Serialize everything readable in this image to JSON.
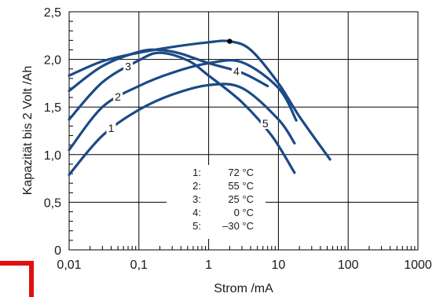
{
  "chart_data": {
    "type": "line",
    "title": "",
    "xlabel": "Strom /mA",
    "ylabel": "Kapazität bis 2 Volt /Ah",
    "x_scale": "log",
    "xlim": [
      0.01,
      1000
    ],
    "ylim": [
      0,
      2.5
    ],
    "x_ticks": [
      0.01,
      0.1,
      1,
      10,
      100,
      1000
    ],
    "x_tick_labels": [
      "0,01",
      "0,1",
      "1",
      "10",
      "100",
      "1000"
    ],
    "y_ticks": [
      0,
      0.5,
      1.0,
      1.5,
      2.0,
      2.5
    ],
    "y_tick_labels": [
      "0",
      "0,5",
      "1,0",
      "1,5",
      "2,0",
      "2,5"
    ],
    "grid": true,
    "line_color": "#1b4a86",
    "series": [
      {
        "label": "1",
        "x": [
          0.01,
          0.03,
          0.1,
          0.3,
          1,
          3,
          10,
          17
        ],
        "y": [
          0.79,
          1.2,
          1.47,
          1.63,
          1.73,
          1.7,
          1.37,
          1.12
        ]
      },
      {
        "label": "2",
        "x": [
          0.01,
          0.03,
          0.1,
          0.3,
          1,
          3,
          10,
          18
        ],
        "y": [
          1.05,
          1.5,
          1.72,
          1.86,
          1.96,
          1.97,
          1.7,
          1.36
        ]
      },
      {
        "label": "3",
        "x": [
          0.01,
          0.03,
          0.1,
          0.2,
          0.5,
          1,
          3,
          8,
          17
        ],
        "y": [
          1.37,
          1.76,
          1.99,
          2.07,
          1.99,
          1.83,
          1.55,
          1.2,
          0.81
        ]
      },
      {
        "label": "4",
        "x": [
          0.01,
          0.03,
          0.1,
          0.3,
          1,
          2,
          4,
          10,
          20,
          55
        ],
        "y": [
          1.83,
          1.98,
          2.07,
          2.13,
          2.18,
          2.19,
          2.1,
          1.75,
          1.4,
          0.95
        ]
      },
      {
        "label": "5",
        "x": [
          0.01,
          0.03,
          0.1,
          0.2,
          0.4,
          1,
          3,
          7
        ],
        "y": [
          1.67,
          1.93,
          2.08,
          2.1,
          2.06,
          1.96,
          1.86,
          1.72
        ]
      }
    ],
    "legend": {
      "position": "bottom-center",
      "entries": [
        {
          "key": "1:",
          "value": "72 °C"
        },
        {
          "key": "2:",
          "value": "55 °C"
        },
        {
          "key": "3:",
          "value": "25 °C"
        },
        {
          "key": "4:",
          "value": "0 °C"
        },
        {
          "key": "5:",
          "value": "–30 °C"
        }
      ]
    },
    "markers": [
      {
        "series": "4",
        "x": 2,
        "y": 2.19
      }
    ]
  }
}
